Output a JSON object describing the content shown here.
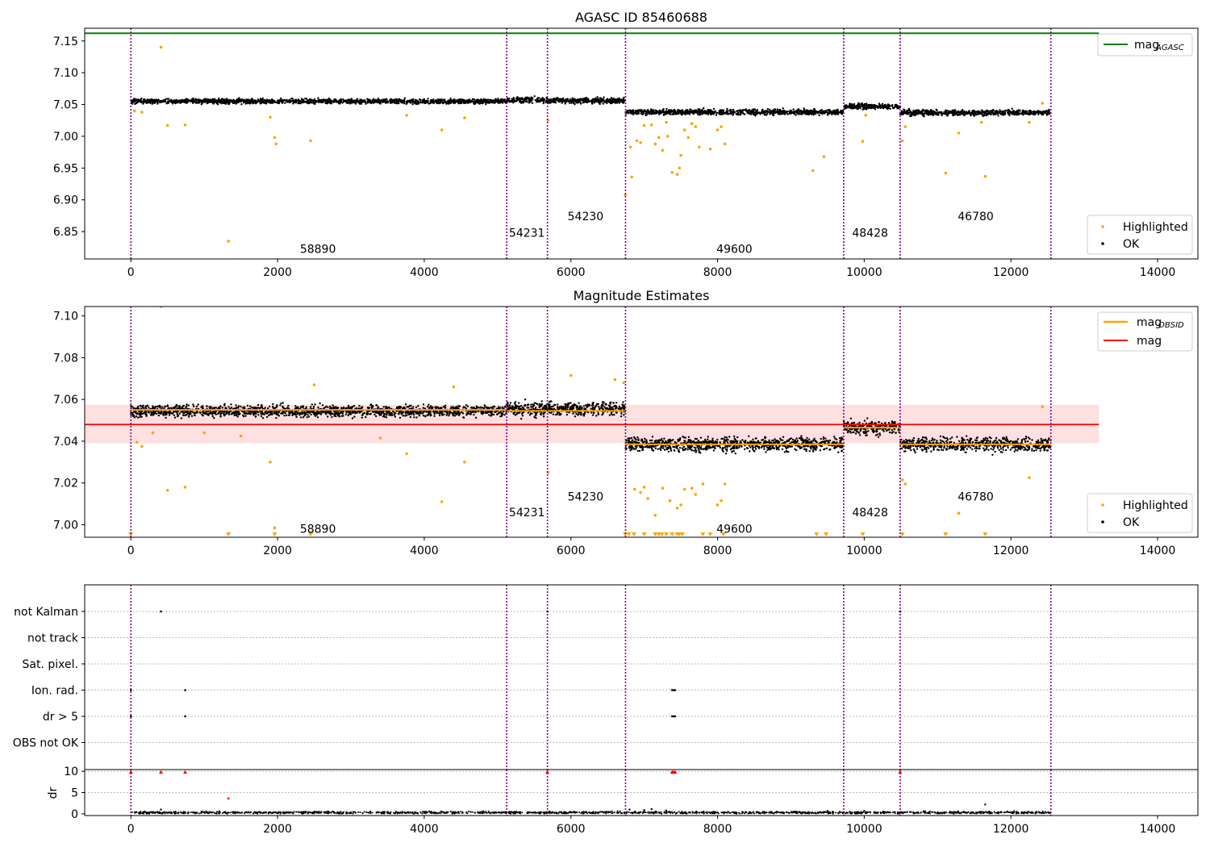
{
  "colors": {
    "ok": "#000000",
    "highlighted": "#ffa500",
    "agasc_line": "#008000",
    "mag_line": "#ff0000",
    "mag_band": "#ffcccc",
    "obsid_line": "#ffa500",
    "obs_boundary": "#800080",
    "grid": "#bbbbbb"
  },
  "chart_data": [
    {
      "type": "scatter",
      "title": "AGASC ID 85460688",
      "xlim": [
        -630,
        14550
      ],
      "ylim": [
        6.807,
        7.17
      ],
      "xticks": [
        0,
        2000,
        4000,
        6000,
        8000,
        10000,
        12000,
        14000
      ],
      "yticks": [
        6.85,
        6.9,
        6.95,
        7.0,
        7.05,
        7.1,
        7.15
      ],
      "ytick_labels": [
        "6.85",
        "6.90",
        "6.95",
        "7.00",
        "7.05",
        "7.10",
        "7.15"
      ],
      "legend_upper": [
        {
          "label": "mag",
          "subscript": "AGASC",
          "kind": "line",
          "color": "#008000"
        }
      ],
      "legend_lower": [
        {
          "label": "Highlighted",
          "kind": "marker",
          "color": "#ffa500"
        },
        {
          "label": "OK",
          "kind": "marker",
          "color": "#000000"
        }
      ],
      "hlines": [
        {
          "y": 7.162,
          "x": [
            -630,
            13200
          ],
          "color": "#008000"
        }
      ],
      "obsid_boundaries": [
        0,
        5125,
        5680,
        6745,
        9720,
        10490,
        12545
      ],
      "obsid_labels": [
        {
          "text": "58890",
          "x": 2550,
          "y": 6.823
        },
        {
          "text": "54231",
          "x": 5400,
          "y": 6.848
        },
        {
          "text": "54230",
          "x": 6200,
          "y": 6.874
        },
        {
          "text": "49600",
          "x": 8230,
          "y": 6.823
        },
        {
          "text": "48428",
          "x": 10080,
          "y": 6.848
        },
        {
          "text": "46780",
          "x": 11520,
          "y": 6.874
        }
      ],
      "segments": [
        {
          "x": [
            0,
            5125
          ],
          "center": 7.055,
          "spread": 0.006
        },
        {
          "x": [
            5125,
            5680
          ],
          "center": 7.057,
          "spread": 0.007
        },
        {
          "x": [
            5680,
            6745
          ],
          "center": 7.056,
          "spread": 0.007
        },
        {
          "x": [
            6745,
            9720
          ],
          "center": 7.038,
          "spread": 0.007
        },
        {
          "x": [
            9720,
            10490
          ],
          "center": 7.047,
          "spread": 0.007
        },
        {
          "x": [
            10490,
            12545
          ],
          "center": 7.037,
          "spread": 0.007
        }
      ],
      "highlighted": [
        [
          410,
          7.14
        ],
        [
          1330,
          6.835
        ],
        [
          50,
          7.04
        ],
        [
          150,
          7.038
        ],
        [
          500,
          7.017
        ],
        [
          740,
          7.018
        ],
        [
          1900,
          7.03
        ],
        [
          1960,
          6.998
        ],
        [
          1980,
          6.988
        ],
        [
          2450,
          6.993
        ],
        [
          4240,
          7.01
        ],
        [
          4550,
          7.029
        ],
        [
          3760,
          7.033
        ],
        [
          5690,
          7.025
        ],
        [
          6740,
          6.908
        ],
        [
          6830,
          6.936
        ],
        [
          6810,
          6.983
        ],
        [
          6900,
          6.993
        ],
        [
          6950,
          6.99
        ],
        [
          7000,
          7.017
        ],
        [
          7100,
          7.018
        ],
        [
          7150,
          6.988
        ],
        [
          7200,
          6.998
        ],
        [
          7250,
          6.978
        ],
        [
          7300,
          7.022
        ],
        [
          7320,
          7.0
        ],
        [
          7380,
          6.943
        ],
        [
          7450,
          6.94
        ],
        [
          7480,
          6.95
        ],
        [
          7500,
          6.97
        ],
        [
          7550,
          7.01
        ],
        [
          7600,
          6.998
        ],
        [
          7650,
          7.02
        ],
        [
          7700,
          7.015
        ],
        [
          7750,
          6.983
        ],
        [
          7900,
          6.98
        ],
        [
          8000,
          7.01
        ],
        [
          8050,
          7.015
        ],
        [
          8100,
          6.988
        ],
        [
          9300,
          6.946
        ],
        [
          9450,
          6.968
        ],
        [
          9980,
          6.992
        ],
        [
          10020,
          7.033
        ],
        [
          10520,
          6.993
        ],
        [
          10560,
          7.015
        ],
        [
          11110,
          6.942
        ],
        [
          11290,
          7.005
        ],
        [
          11650,
          6.937
        ],
        [
          11600,
          7.022
        ],
        [
          12250,
          7.022
        ],
        [
          12430,
          7.052
        ]
      ]
    },
    {
      "type": "scatter",
      "title": "Magnitude Estimates",
      "xlim": [
        -630,
        14550
      ],
      "ylim": [
        6.994,
        7.1045
      ],
      "xticks": [
        0,
        2000,
        4000,
        6000,
        8000,
        10000,
        12000,
        14000
      ],
      "yticks": [
        7.0,
        7.02,
        7.04,
        7.06,
        7.08,
        7.1
      ],
      "ytick_labels": [
        "7.00",
        "7.02",
        "7.04",
        "7.06",
        "7.08",
        "7.10"
      ],
      "legend_upper": [
        {
          "label": "mag",
          "subscript": "OBSID",
          "kind": "line",
          "color": "#ffa500"
        },
        {
          "label": "mag",
          "subscript": "",
          "kind": "line",
          "color": "#ff0000"
        }
      ],
      "legend_lower": [
        {
          "label": "Highlighted",
          "kind": "marker",
          "color": "#ffa500"
        },
        {
          "label": "OK",
          "kind": "marker",
          "color": "#000000"
        }
      ],
      "mag_line": {
        "y": 7.048,
        "band": [
          7.039,
          7.0575
        ],
        "x": [
          -630,
          13200
        ]
      },
      "obsid_boundaries": [
        0,
        5125,
        5680,
        6745,
        9720,
        10490,
        12545
      ],
      "obsid_labels": [
        {
          "text": "58890",
          "x": 2550,
          "y": 6.998
        },
        {
          "text": "54231",
          "x": 5400,
          "y": 7.006
        },
        {
          "text": "54230",
          "x": 6200,
          "y": 7.0135
        },
        {
          "text": "49600",
          "x": 8230,
          "y": 6.998
        },
        {
          "text": "48428",
          "x": 10080,
          "y": 7.006
        },
        {
          "text": "46780",
          "x": 11520,
          "y": 7.0135
        }
      ],
      "segments": [
        {
          "x": [
            0,
            5125
          ],
          "center": 7.0545,
          "spread": 0.0045,
          "obsid_mag": 7.055
        },
        {
          "x": [
            5125,
            5680
          ],
          "center": 7.0555,
          "spread": 0.0055,
          "obsid_mag": 7.0545
        },
        {
          "x": [
            5680,
            6745
          ],
          "center": 7.0555,
          "spread": 0.0055,
          "obsid_mag": 7.0545
        },
        {
          "x": [
            6745,
            9720
          ],
          "center": 7.0385,
          "spread": 0.0055,
          "obsid_mag": 7.0385
        },
        {
          "x": [
            9720,
            10490
          ],
          "center": 7.0465,
          "spread": 0.0055,
          "obsid_mag": 7.0465
        },
        {
          "x": [
            10490,
            12545
          ],
          "center": 7.0385,
          "spread": 0.0055,
          "obsid_mag": 7.0385
        }
      ],
      "highlighted": [
        [
          410,
          7.1045
        ],
        [
          500,
          7.0165
        ],
        [
          740,
          7.018
        ],
        [
          1900,
          7.03
        ],
        [
          1960,
          6.9985
        ],
        [
          3760,
          7.034
        ],
        [
          4240,
          7.011
        ],
        [
          4550,
          7.03
        ],
        [
          5690,
          7.025
        ],
        [
          6870,
          7.017
        ],
        [
          6950,
          7.0155
        ],
        [
          7000,
          7.018
        ],
        [
          7050,
          7.0125
        ],
        [
          7150,
          7.0045
        ],
        [
          7250,
          7.0175
        ],
        [
          7350,
          7.0115
        ],
        [
          7450,
          7.008
        ],
        [
          7500,
          7.0095
        ],
        [
          7550,
          7.017
        ],
        [
          7650,
          7.0175
        ],
        [
          7700,
          7.0145
        ],
        [
          7800,
          7.0195
        ],
        [
          8000,
          7.0095
        ],
        [
          8050,
          7.0115
        ],
        [
          8100,
          7.0195
        ],
        [
          10520,
          7.0215
        ],
        [
          10560,
          7.0195
        ],
        [
          11290,
          7.0055
        ],
        [
          12250,
          7.0225
        ],
        [
          12430,
          7.0565
        ],
        [
          80,
          7.0395
        ],
        [
          150,
          7.0375
        ],
        [
          300,
          7.044
        ],
        [
          1000,
          7.044
        ],
        [
          1500,
          7.0425
        ],
        [
          2500,
          7.067
        ],
        [
          3400,
          7.0415
        ],
        [
          4400,
          7.066
        ],
        [
          6000,
          7.0715
        ],
        [
          6600,
          7.0695
        ],
        [
          6720,
          7.068
        ]
      ],
      "clipped": [
        0,
        1330,
        1960,
        2450,
        6740,
        6790,
        6860,
        7000,
        7150,
        7200,
        7240,
        7300,
        7380,
        7450,
        7480,
        7520,
        7800,
        7900,
        8080,
        9350,
        9480,
        9980,
        10520,
        11110,
        11650
      ]
    },
    {
      "type": "scatter",
      "title": "",
      "xlim": [
        -630,
        14550
      ],
      "xticks": [
        0,
        2000,
        4000,
        6000,
        8000,
        10000,
        12000,
        14000
      ],
      "flag_categories": [
        "not Kalman",
        "not track",
        "Sat. pixel.",
        "Ion. rad.",
        "dr > 5",
        "OBS not OK"
      ],
      "flag_points": [
        {
          "category": "not Kalman",
          "x": [
            410,
            5680,
            10490
          ]
        },
        {
          "category": "Ion. rad.",
          "x": [
            0,
            740,
            7380,
            7400,
            7420
          ]
        },
        {
          "category": "dr > 5",
          "x": [
            0,
            740,
            7380,
            7400,
            7420
          ]
        }
      ],
      "obsid_boundaries": [
        0,
        5125,
        5680,
        6745,
        9720,
        10490,
        12545
      ]
    },
    {
      "type": "scatter",
      "ylabel": "dr",
      "xlim": [
        -630,
        14550
      ],
      "ylim": [
        -0.4,
        10.4
      ],
      "xticks": [
        0,
        2000,
        4000,
        6000,
        8000,
        10000,
        12000,
        14000
      ],
      "yticks": [
        0,
        5,
        10
      ],
      "ytick_labels": [
        "0",
        "5",
        "10"
      ],
      "baseline": {
        "x": [
          0,
          12545
        ],
        "mean": 0.3,
        "spread": 0.25
      },
      "outliers_black": [
        [
          410,
          1.0
        ],
        [
          6800,
          1.0
        ],
        [
          7000,
          0.9
        ],
        [
          7100,
          1.1
        ],
        [
          7300,
          0.8
        ],
        [
          9500,
          0.7
        ],
        [
          10000,
          0.7
        ],
        [
          11650,
          2.2
        ]
      ],
      "outliers_red_clipped": [
        0,
        410,
        740,
        5680,
        7380,
        7400,
        7420,
        10490
      ],
      "outliers_red": [
        [
          1330,
          3.6
        ]
      ],
      "obsid_boundaries": [
        0,
        5125,
        5680,
        6745,
        9720,
        10490,
        12545
      ]
    }
  ]
}
